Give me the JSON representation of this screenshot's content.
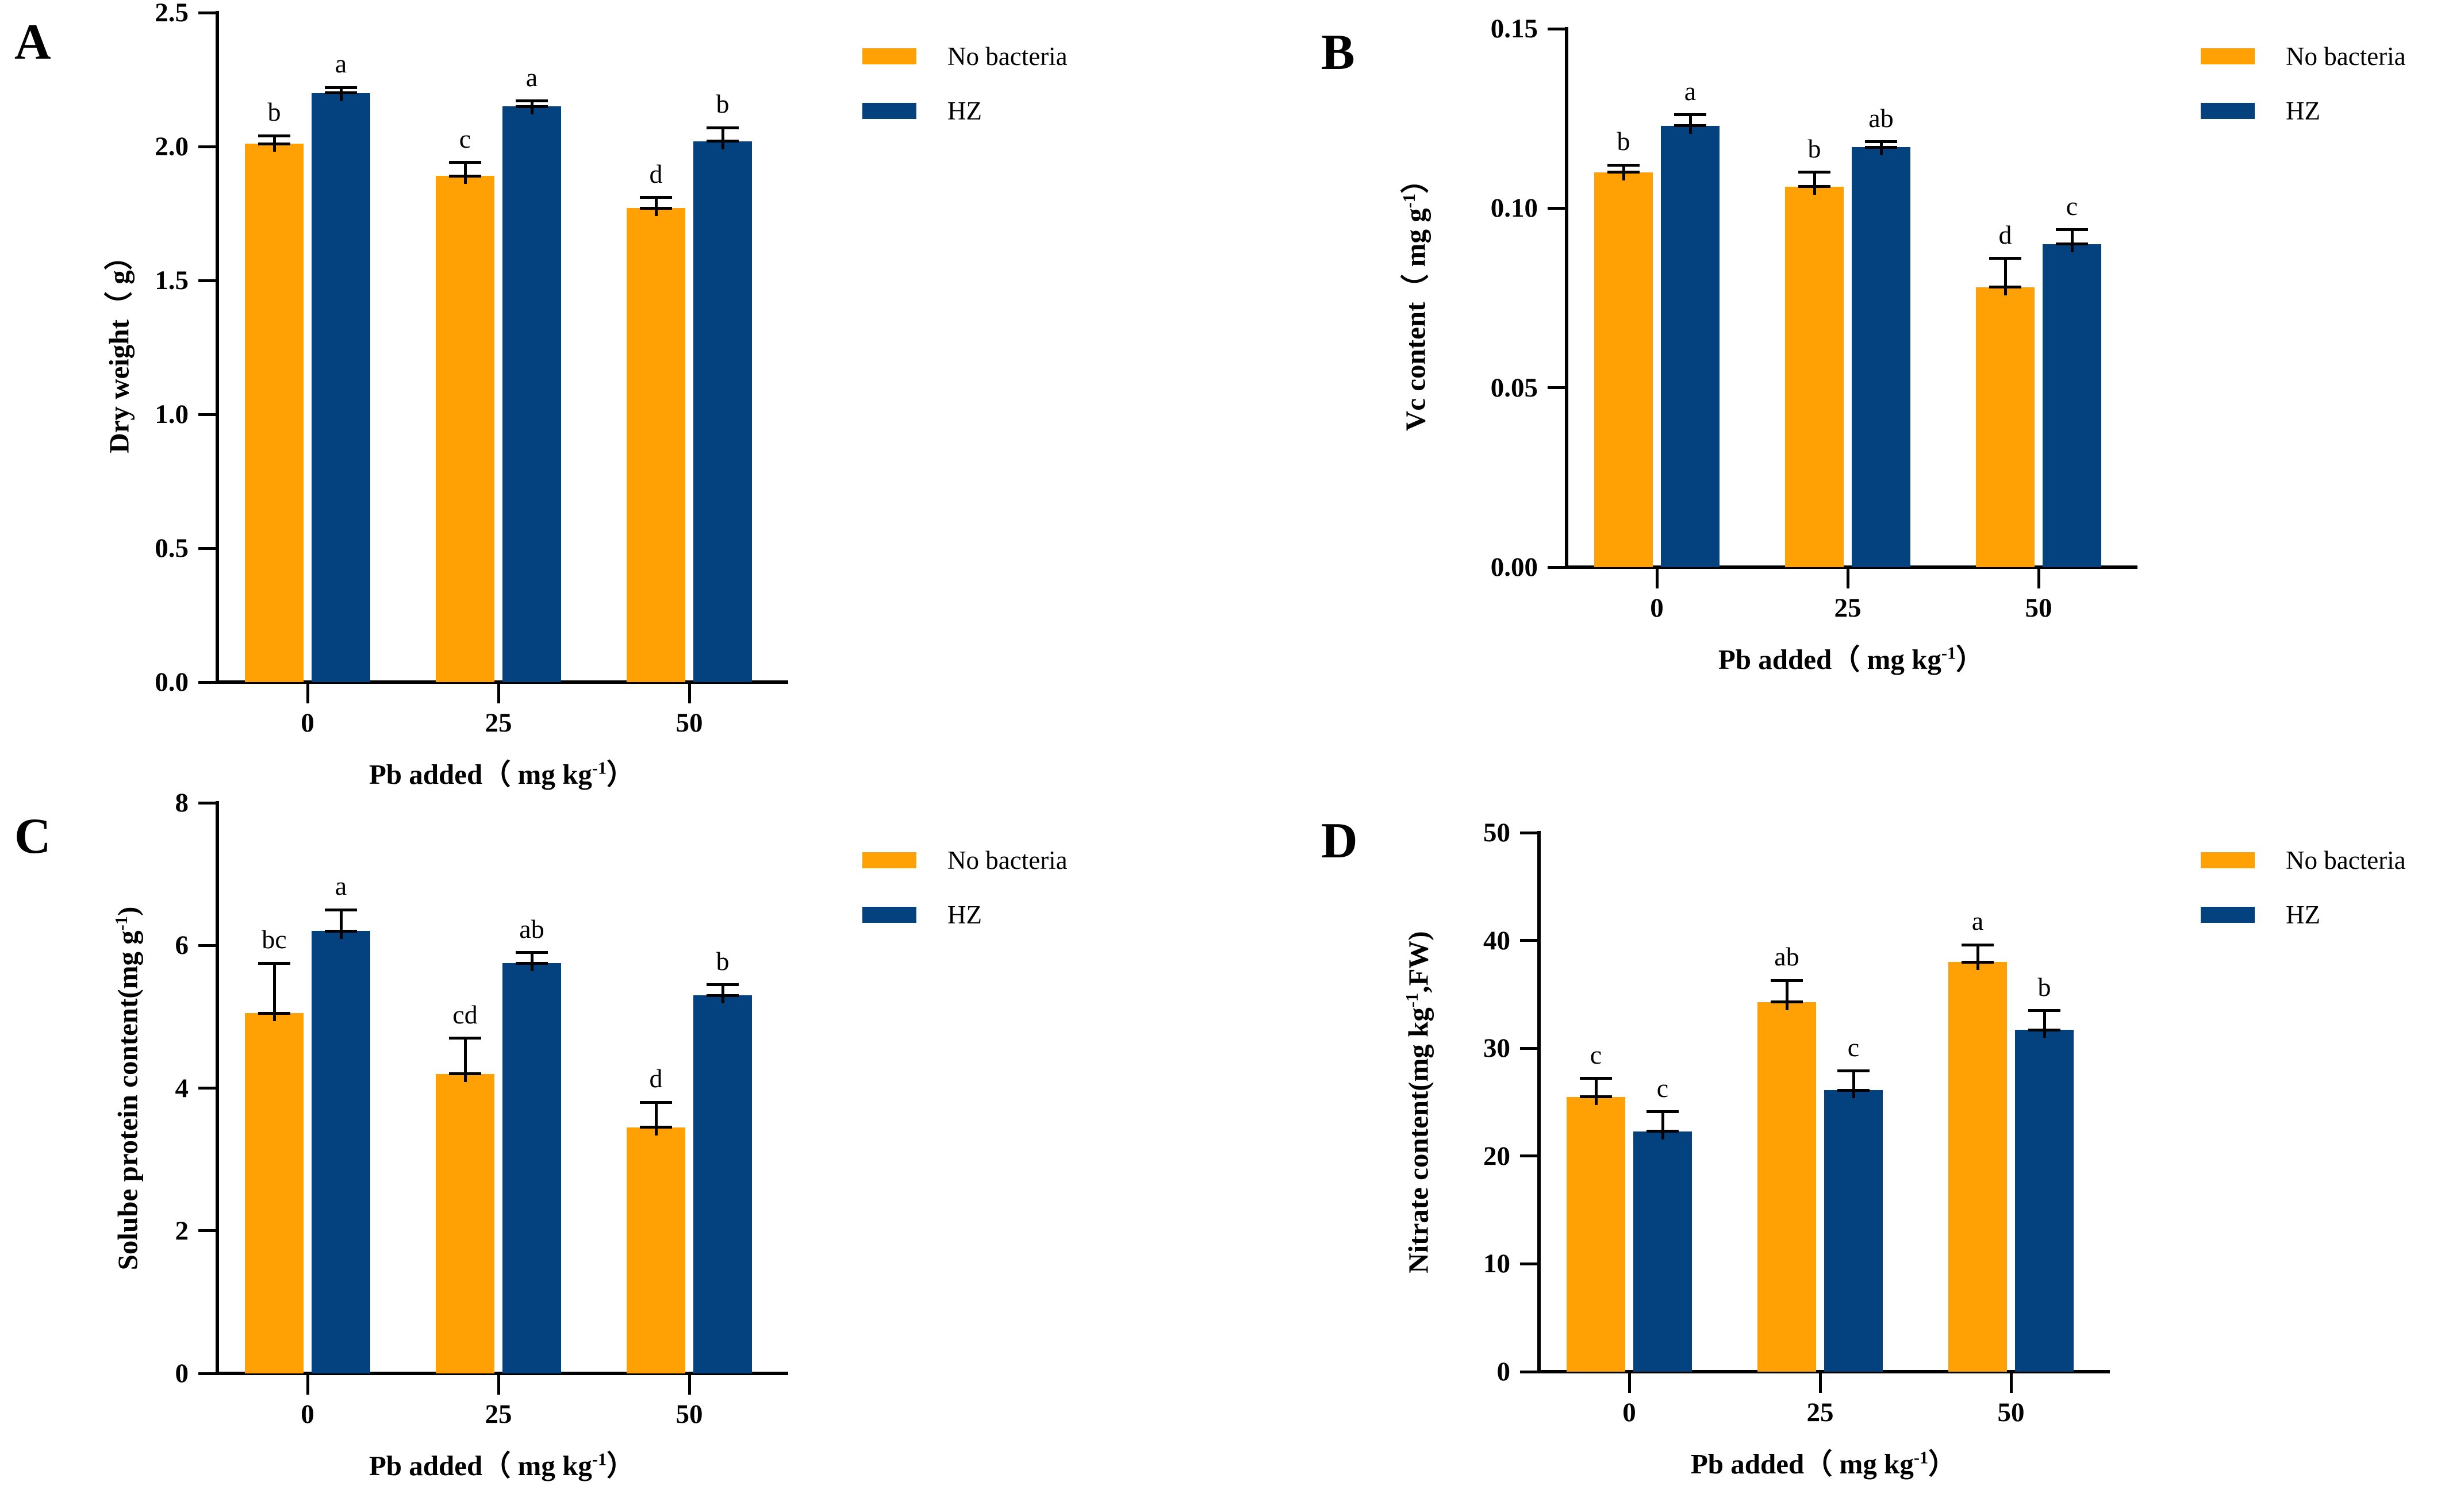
{
  "figure": {
    "background": "#ffffff",
    "series_colors": {
      "no_bacteria": "#FFA005",
      "hz": "#04427F"
    }
  },
  "legend": {
    "items": [
      {
        "label": "No bacteria",
        "color": "#FFA005"
      },
      {
        "label": "HZ",
        "color": "#04427F"
      }
    ]
  },
  "xlabel": {
    "pre": "Pb added（ mg kg",
    "sup": "-1",
    "post": "）"
  },
  "chart_data": [
    {
      "panel": "A",
      "type": "bar",
      "ylabel_pre": "Dry weight（ g）",
      "ylabel_sup": "",
      "ylabel_post": "",
      "ymax": 2.5,
      "yticks": [
        "0.0",
        "0.5",
        "1.0",
        "1.5",
        "2.0",
        "2.5"
      ],
      "categories": [
        "0",
        "25",
        "50"
      ],
      "legend_position": "right-top",
      "grid": false,
      "series": [
        {
          "name": "No bacteria",
          "color": "#FFA005",
          "values": [
            2.01,
            1.89,
            1.77
          ],
          "errors": [
            0.03,
            0.05,
            0.04
          ],
          "letters": [
            "b",
            "c",
            "d"
          ]
        },
        {
          "name": "HZ",
          "color": "#04427F",
          "values": [
            2.2,
            2.15,
            2.02
          ],
          "errors": [
            0.02,
            0.02,
            0.05
          ],
          "letters": [
            "a",
            "a",
            "b"
          ]
        }
      ]
    },
    {
      "panel": "B",
      "type": "bar",
      "ylabel_pre": "Vc content（ mg g",
      "ylabel_sup": "-1",
      "ylabel_post": "）",
      "ymax": 0.15,
      "yticks": [
        "0.00",
        "0.05",
        "0.10",
        "0.15"
      ],
      "categories": [
        "0",
        "25",
        "50"
      ],
      "legend_position": "right-top",
      "grid": false,
      "series": [
        {
          "name": "No bacteria",
          "color": "#FFA005",
          "values": [
            0.11,
            0.106,
            0.078
          ],
          "errors": [
            0.002,
            0.004,
            0.008
          ],
          "letters": [
            "b",
            "b",
            "d"
          ]
        },
        {
          "name": "HZ",
          "color": "#04427F",
          "values": [
            0.123,
            0.117,
            0.09
          ],
          "errors": [
            0.003,
            0.0015,
            0.004
          ],
          "letters": [
            "a",
            "ab",
            "c"
          ]
        }
      ]
    },
    {
      "panel": "C",
      "type": "bar",
      "ylabel_pre": "Solube protein content(mg g",
      "ylabel_sup": "-1",
      "ylabel_post": ")",
      "ymax": 8,
      "yticks": [
        "0",
        "2",
        "4",
        "6",
        "8"
      ],
      "categories": [
        "0",
        "25",
        "50"
      ],
      "legend_position": "right-top",
      "grid": false,
      "series": [
        {
          "name": "No bacteria",
          "color": "#FFA005",
          "values": [
            5.05,
            4.2,
            3.45
          ],
          "errors": [
            0.7,
            0.5,
            0.35
          ],
          "letters": [
            "bc",
            "cd",
            "d"
          ]
        },
        {
          "name": "HZ",
          "color": "#04427F",
          "values": [
            6.2,
            5.75,
            5.3
          ],
          "errors": [
            0.3,
            0.15,
            0.15
          ],
          "letters": [
            "a",
            "ab",
            "b"
          ]
        }
      ]
    },
    {
      "panel": "D",
      "type": "bar",
      "ylabel_pre": "Nitrate content(mg kg",
      "ylabel_sup": "-1",
      "ylabel_post": ",FW)",
      "ymax": 50,
      "yticks": [
        "0",
        "10",
        "20",
        "30",
        "40",
        "50"
      ],
      "categories": [
        "0",
        "25",
        "50"
      ],
      "legend_position": "right-top",
      "grid": false,
      "series": [
        {
          "name": "No bacteria",
          "color": "#FFA005",
          "values": [
            25.5,
            34.3,
            38.0
          ],
          "errors": [
            1.7,
            2.0,
            1.6
          ],
          "letters": [
            "c",
            "ab",
            "a"
          ]
        },
        {
          "name": "HZ",
          "color": "#04427F",
          "values": [
            22.3,
            26.1,
            31.7
          ],
          "errors": [
            1.8,
            1.8,
            1.8
          ],
          "letters": [
            "c",
            "c",
            "b"
          ]
        }
      ]
    }
  ]
}
